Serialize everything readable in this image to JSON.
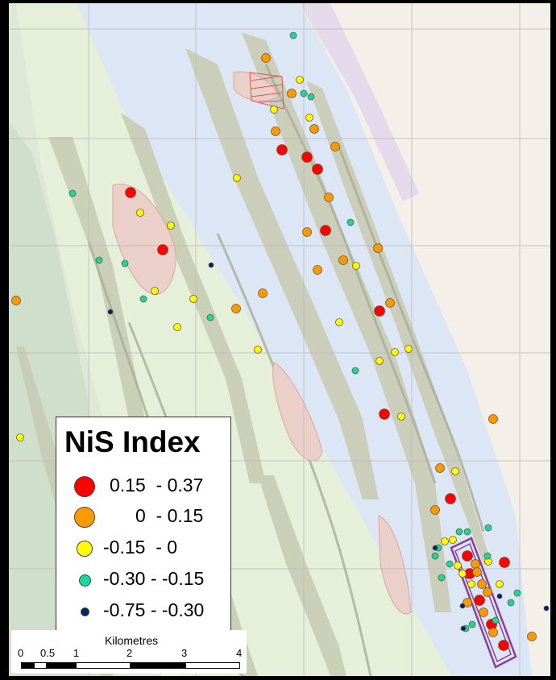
{
  "legend": {
    "title": "NiS Index",
    "items": [
      {
        "label": "0.15  - 0.37",
        "color": "#ff0000",
        "size": "large"
      },
      {
        "label": "     0  - 0.15",
        "color": "#ff9900",
        "size": "large"
      },
      {
        "label": "-0.15  - 0",
        "color": "#ffff00",
        "size": "medium"
      },
      {
        "label": "-0.30 - -0.15",
        "color": "#17d9a0",
        "size": "small"
      },
      {
        "label": "-0.75 - -0.30",
        "color": "#002266",
        "size": "tiny"
      }
    ]
  },
  "scale": {
    "title": "Kilometres",
    "ticks": [
      "0",
      "0.5",
      "1",
      "2",
      "3",
      "4"
    ]
  },
  "colors": {
    "high": "#ff0000",
    "mid": "#ff9900",
    "low": "#ffff00",
    "lower": "#17d9a0",
    "lowest": "#002266"
  }
}
